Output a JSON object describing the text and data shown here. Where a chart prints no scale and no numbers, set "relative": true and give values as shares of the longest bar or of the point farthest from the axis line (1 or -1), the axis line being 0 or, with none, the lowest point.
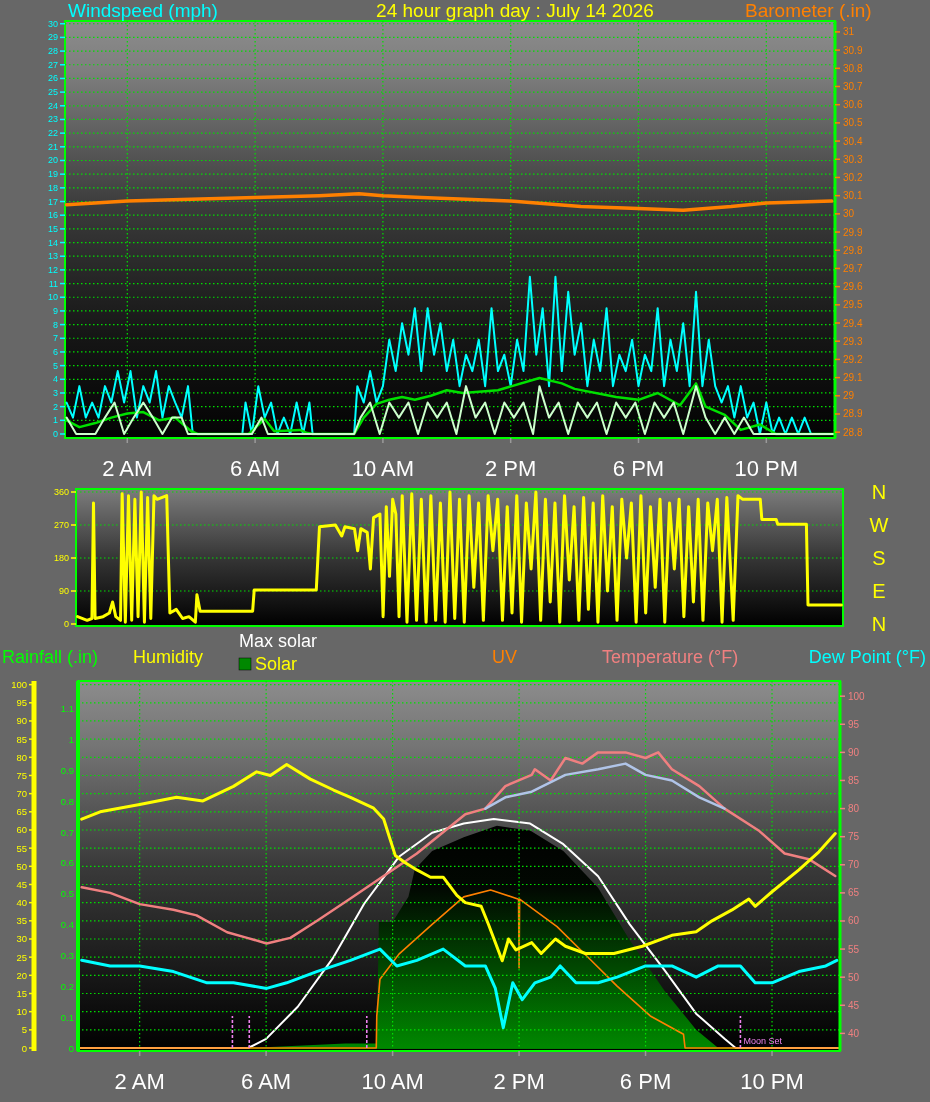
{
  "chart_data": [
    {
      "type": "line",
      "title": "24 hour graph day : July 14 2026",
      "ylabel": "Windspeed (mph)",
      "y2label": "Barometer (.in)",
      "xlim": [
        "2026-07-14T00:03",
        "2026-07-15T00:09"
      ],
      "xticks": [
        {
          "value": "2026-07-14T02:00",
          "label": "2 AM"
        },
        {
          "value": "2026-07-14T06:00",
          "label": "6 AM"
        },
        {
          "value": "2026-07-14T10:00",
          "label": "10 AM"
        },
        {
          "value": "2026-07-14T14:00",
          "label": "2 PM"
        },
        {
          "value": "2026-07-14T18:00",
          "label": "6 PM"
        },
        {
          "value": "2026-07-14T22:00",
          "label": "10 PM"
        }
      ],
      "ylim": [
        0,
        30.2
      ],
      "yticks": [
        0,
        1,
        2,
        3,
        4,
        5,
        6,
        7,
        8,
        9,
        10,
        11,
        12,
        13,
        14,
        15,
        16,
        17,
        18,
        19,
        20,
        21,
        22,
        23,
        24,
        25,
        26,
        27,
        28,
        29,
        30
      ],
      "y2lim": [
        28.79,
        31.06
      ],
      "y2ticks": [
        28.8,
        28.9,
        29,
        29.1,
        29.2,
        29.3,
        29.4,
        29.5,
        29.6,
        29.7,
        29.8,
        29.9,
        30,
        30.1,
        30.2,
        30.3,
        30.4,
        30.5,
        30.6,
        30.7,
        30.8,
        30.9,
        31
      ],
      "grid": true,
      "series": [
        {
          "color": "#00ffff",
          "x": [
            "2026-07-14T00:06",
            "2026-07-14T00:18",
            "2026-07-14T00:30",
            "2026-07-14T00:42",
            "2026-07-14T00:54",
            "2026-07-14T01:06",
            "2026-07-14T01:18",
            "2026-07-14T01:30",
            "2026-07-14T01:42",
            "2026-07-14T01:54",
            "2026-07-14T02:06",
            "2026-07-14T02:18",
            "2026-07-14T02:30",
            "2026-07-14T02:42",
            "2026-07-14T02:54",
            "2026-07-14T03:06",
            "2026-07-14T03:18",
            "2026-07-14T03:30",
            "2026-07-14T03:42",
            "2026-07-14T03:54",
            "2026-07-14T04:03",
            "2026-07-14T05:36",
            "2026-07-14T05:42",
            "2026-07-14T05:54",
            "2026-07-14T06:06",
            "2026-07-14T06:18",
            "2026-07-14T06:30",
            "2026-07-14T06:42",
            "2026-07-14T06:54",
            "2026-07-14T07:06",
            "2026-07-14T07:18",
            "2026-07-14T07:30",
            "2026-07-14T07:42",
            "2026-07-14T07:48",
            "2026-07-14T09:06",
            "2026-07-14T09:12",
            "2026-07-14T09:24",
            "2026-07-14T09:36",
            "2026-07-14T09:48",
            "2026-07-14T10:00",
            "2026-07-14T10:12",
            "2026-07-14T10:24",
            "2026-07-14T10:36",
            "2026-07-14T10:48",
            "2026-07-14T11:00",
            "2026-07-14T11:12",
            "2026-07-14T11:24",
            "2026-07-14T11:36",
            "2026-07-14T11:48",
            "2026-07-14T12:00",
            "2026-07-14T12:12",
            "2026-07-14T12:24",
            "2026-07-14T12:36",
            "2026-07-14T12:48",
            "2026-07-14T13:00",
            "2026-07-14T13:12",
            "2026-07-14T13:24",
            "2026-07-14T13:36",
            "2026-07-14T13:48",
            "2026-07-14T14:00",
            "2026-07-14T14:12",
            "2026-07-14T14:24",
            "2026-07-14T14:36",
            "2026-07-14T14:48",
            "2026-07-14T15:00",
            "2026-07-14T15:12",
            "2026-07-14T15:24",
            "2026-07-14T15:36",
            "2026-07-14T15:48",
            "2026-07-14T16:00",
            "2026-07-14T16:12",
            "2026-07-14T16:24",
            "2026-07-14T16:36",
            "2026-07-14T16:48",
            "2026-07-14T17:00",
            "2026-07-14T17:12",
            "2026-07-14T17:24",
            "2026-07-14T17:36",
            "2026-07-14T17:48",
            "2026-07-14T18:00",
            "2026-07-14T18:12",
            "2026-07-14T18:24",
            "2026-07-14T18:36",
            "2026-07-14T18:48",
            "2026-07-14T19:00",
            "2026-07-14T19:12",
            "2026-07-14T19:24",
            "2026-07-14T19:36",
            "2026-07-14T19:48",
            "2026-07-14T20:00",
            "2026-07-14T20:12",
            "2026-07-14T20:24",
            "2026-07-14T20:36",
            "2026-07-14T20:48",
            "2026-07-14T21:00",
            "2026-07-14T21:12",
            "2026-07-14T21:24",
            "2026-07-14T21:36",
            "2026-07-14T21:48",
            "2026-07-14T22:00",
            "2026-07-14T22:12",
            "2026-07-14T22:24",
            "2026-07-14T22:36",
            "2026-07-14T22:48",
            "2026-07-14T23:00",
            "2026-07-14T23:12",
            "2026-07-14T23:24",
            "2026-07-15T00:06"
          ],
          "values": [
            2.3,
            1.2,
            3.5,
            1.2,
            2.3,
            1.2,
            3.5,
            2.3,
            4.6,
            2.3,
            4.6,
            1.2,
            3.5,
            2.3,
            4.6,
            1.2,
            3.5,
            2.3,
            1.2,
            3.5,
            0,
            0,
            2.3,
            0,
            3.5,
            1.2,
            2.3,
            0,
            1.2,
            0,
            2.3,
            0,
            2.3,
            0,
            0,
            3.5,
            2.3,
            4.6,
            2.3,
            3.5,
            6.9,
            4.6,
            8.1,
            5.8,
            9.2,
            4.6,
            9.2,
            5.8,
            8.1,
            4.6,
            6.9,
            3.5,
            5.8,
            4.6,
            6.9,
            3.5,
            9.2,
            4.6,
            5.8,
            3.5,
            6.9,
            4.6,
            11.5,
            5.8,
            9.2,
            3.5,
            11.5,
            4.6,
            10.4,
            5.8,
            8.1,
            3.5,
            6.9,
            4.6,
            9.2,
            3.5,
            5.8,
            4.6,
            6.9,
            3.5,
            5.8,
            4.6,
            9.2,
            3.5,
            6.9,
            4.6,
            8.1,
            3.5,
            10.4,
            3.5,
            6.9,
            3.5,
            2.3,
            3.5,
            1.2,
            3.5,
            1.2,
            2.3,
            0,
            2.3,
            0,
            1.2,
            0,
            1.2,
            0,
            1.2,
            0,
            0
          ]
        },
        {
          "color": "#00e000",
          "x": [
            "2026-07-14T00:06",
            "2026-07-14T00:30",
            "2026-07-14T01:00",
            "2026-07-14T01:30",
            "2026-07-14T02:00",
            "2026-07-14T02:30",
            "2026-07-14T03:00",
            "2026-07-14T03:30",
            "2026-07-14T04:00",
            "2026-07-14T04:12",
            "2026-07-14T05:48",
            "2026-07-14T06:18",
            "2026-07-14T06:36",
            "2026-07-14T07:24",
            "2026-07-14T07:36",
            "2026-07-14T07:48",
            "2026-07-14T09:06",
            "2026-07-14T09:24",
            "2026-07-14T09:48",
            "2026-07-14T10:12",
            "2026-07-14T10:36",
            "2026-07-14T11:00",
            "2026-07-14T11:30",
            "2026-07-14T12:00",
            "2026-07-14T12:30",
            "2026-07-14T13:36",
            "2026-07-14T14:54",
            "2026-07-14T15:36",
            "2026-07-14T16:00",
            "2026-07-14T17:18",
            "2026-07-14T18:00",
            "2026-07-14T18:36",
            "2026-07-14T19:18",
            "2026-07-14T19:48",
            "2026-07-14T20:06",
            "2026-07-14T20:42",
            "2026-07-14T21:12",
            "2026-07-14T21:48",
            "2026-07-14T22:18",
            "2026-07-15T00:06"
          ],
          "values": [
            1,
            0.5,
            0.8,
            1.2,
            1.5,
            1.6,
            1,
            1.2,
            0.2,
            0,
            0,
            1.1,
            0.2,
            0.3,
            0.1,
            0,
            0,
            1.2,
            2.2,
            2.5,
            2.7,
            2.5,
            2.8,
            3.2,
            3,
            3.2,
            4.1,
            3.7,
            3.3,
            2.7,
            2.5,
            3,
            2.1,
            3.7,
            2,
            1.4,
            0.3,
            0.7,
            0,
            0
          ]
        },
        {
          "color": "#ccffcc",
          "x": [
            "2026-07-14T00:06",
            "2026-07-14T00:24",
            "2026-07-14T01:00",
            "2026-07-14T01:18",
            "2026-07-14T01:36",
            "2026-07-14T01:54",
            "2026-07-14T02:12",
            "2026-07-14T02:30",
            "2026-07-14T02:48",
            "2026-07-14T03:06",
            "2026-07-14T03:24",
            "2026-07-14T03:42",
            "2026-07-14T03:54",
            "2026-07-14T05:54",
            "2026-07-14T06:12",
            "2026-07-14T06:24",
            "2026-07-14T09:06",
            "2026-07-14T09:18",
            "2026-07-14T09:36",
            "2026-07-14T09:54",
            "2026-07-14T10:12",
            "2026-07-14T10:30",
            "2026-07-14T10:48",
            "2026-07-14T11:06",
            "2026-07-14T11:24",
            "2026-07-14T11:42",
            "2026-07-14T12:00",
            "2026-07-14T12:18",
            "2026-07-14T12:36",
            "2026-07-14T12:54",
            "2026-07-14T13:12",
            "2026-07-14T13:30",
            "2026-07-14T13:48",
            "2026-07-14T14:06",
            "2026-07-14T14:24",
            "2026-07-14T14:42",
            "2026-07-14T14:54",
            "2026-07-14T15:12",
            "2026-07-14T15:30",
            "2026-07-14T15:48",
            "2026-07-14T16:06",
            "2026-07-14T16:24",
            "2026-07-14T16:42",
            "2026-07-14T17:00",
            "2026-07-14T17:18",
            "2026-07-14T17:36",
            "2026-07-14T17:54",
            "2026-07-14T18:12",
            "2026-07-14T18:30",
            "2026-07-14T18:48",
            "2026-07-14T19:06",
            "2026-07-14T19:24",
            "2026-07-14T19:48",
            "2026-07-14T20:06",
            "2026-07-14T20:24",
            "2026-07-14T20:42",
            "2026-07-14T21:00",
            "2026-07-14T21:18",
            "2026-07-14T21:36",
            "2026-07-14T22:00",
            "2026-07-15T00:06"
          ],
          "values": [
            1.2,
            0,
            0,
            1.2,
            2.3,
            0,
            1.2,
            2.3,
            1.2,
            0,
            1.2,
            1.2,
            0,
            0,
            1.2,
            0,
            0,
            1.2,
            2.3,
            0,
            2.3,
            1.2,
            2.3,
            0,
            2.3,
            1.2,
            2.3,
            0,
            3.5,
            1.2,
            2.3,
            0,
            2.3,
            1.2,
            2.3,
            0,
            3.5,
            1.2,
            2.3,
            0,
            2.3,
            1.2,
            2.3,
            0,
            2.3,
            1.2,
            2.3,
            0,
            2.3,
            1.2,
            2.3,
            0,
            3.5,
            1.2,
            0,
            1.2,
            0,
            1.2,
            0,
            0,
            0
          ]
        },
        {
          "color": "#ff8000",
          "axis": "y2",
          "x": [
            "2026-07-14T00:06",
            "2026-07-14T02:00",
            "2026-07-14T04:00",
            "2026-07-14T06:00",
            "2026-07-14T08:00",
            "2026-07-14T09:15",
            "2026-07-14T10:00",
            "2026-07-14T11:12",
            "2026-07-14T12:36",
            "2026-07-14T14:00",
            "2026-07-14T16:12",
            "2026-07-14T18:00",
            "2026-07-14T19:24",
            "2026-07-14T20:54",
            "2026-07-14T22:00",
            "2026-07-15T00:03"
          ],
          "values": [
            30.05,
            30.07,
            30.08,
            30.09,
            30.1,
            30.11,
            30.1,
            30.09,
            30.08,
            30.07,
            30.04,
            30.03,
            30.02,
            30.04,
            30.06,
            30.07
          ]
        }
      ]
    },
    {
      "type": "line",
      "xlim": [
        "2026-07-14T00:03",
        "2026-07-15T00:09"
      ],
      "ylim": [
        0,
        360
      ],
      "yticks": [
        0,
        90,
        180,
        270,
        360
      ],
      "grid": "y",
      "tick_labels": "y",
      "annotations": [
        "N",
        "W",
        "S",
        "E",
        "N"
      ],
      "series": [
        {
          "color": "#ffff00",
          "x": [
            "2026-07-14T00:06",
            "2026-07-14T00:24",
            "2026-07-14T00:33",
            "2026-07-14T00:36",
            "2026-07-14T00:39",
            "2026-07-14T00:54",
            "2026-07-14T01:06",
            "2026-07-14T01:12",
            "2026-07-14T01:18",
            "2026-07-14T01:27",
            "2026-07-14T01:30",
            "2026-07-14T01:36",
            "2026-07-14T01:42",
            "2026-07-14T01:48",
            "2026-07-14T01:54",
            "2026-07-14T02:00",
            "2026-07-14T02:06",
            "2026-07-14T02:12",
            "2026-07-14T02:18",
            "2026-07-14T02:24",
            "2026-07-14T02:30",
            "2026-07-14T02:36",
            "2026-07-14T02:54",
            "2026-07-14T03:00",
            "2026-07-14T03:12",
            "2026-07-14T03:24",
            "2026-07-14T03:36",
            "2026-07-14T03:48",
            "2026-07-14T03:51",
            "2026-07-14T03:57",
            "2026-07-14T05:36",
            "2026-07-14T05:39",
            "2026-07-14T07:36",
            "2026-07-14T07:42",
            "2026-07-14T08:12",
            "2026-07-14T08:24",
            "2026-07-14T08:30",
            "2026-07-14T08:48",
            "2026-07-14T08:54",
            "2026-07-14T09:00",
            "2026-07-14T09:12",
            "2026-07-14T09:18",
            "2026-07-14T09:24",
            "2026-07-14T09:36",
            "2026-07-14T09:42",
            "2026-07-14T09:48",
            "2026-07-14T09:54",
            "2026-07-14T10:00",
            "2026-07-14T10:06",
            "2026-07-14T10:12",
            "2026-07-14T10:18",
            "2026-07-14T10:27",
            "2026-07-14T10:36",
            "2026-07-14T10:45",
            "2026-07-14T10:54",
            "2026-07-14T11:03",
            "2026-07-14T11:12",
            "2026-07-14T11:21",
            "2026-07-14T11:30",
            "2026-07-14T11:39",
            "2026-07-14T11:48",
            "2026-07-14T11:57",
            "2026-07-14T12:06",
            "2026-07-14T12:15",
            "2026-07-14T12:24",
            "2026-07-14T12:33",
            "2026-07-14T12:42",
            "2026-07-14T12:51",
            "2026-07-14T13:00",
            "2026-07-14T13:09",
            "2026-07-14T13:18",
            "2026-07-14T13:27",
            "2026-07-14T13:36",
            "2026-07-14T13:45",
            "2026-07-14T13:54",
            "2026-07-14T14:03",
            "2026-07-14T14:12",
            "2026-07-14T14:21",
            "2026-07-14T14:30",
            "2026-07-14T14:39",
            "2026-07-14T14:48",
            "2026-07-14T14:57",
            "2026-07-14T15:06",
            "2026-07-14T15:15",
            "2026-07-14T15:24",
            "2026-07-14T15:33",
            "2026-07-14T15:42",
            "2026-07-14T15:51",
            "2026-07-14T16:00",
            "2026-07-14T16:09",
            "2026-07-14T16:18",
            "2026-07-14T16:27",
            "2026-07-14T16:36",
            "2026-07-14T16:45",
            "2026-07-14T16:54",
            "2026-07-14T17:03",
            "2026-07-14T17:12",
            "2026-07-14T17:21",
            "2026-07-14T17:30",
            "2026-07-14T17:39",
            "2026-07-14T17:48",
            "2026-07-14T17:57",
            "2026-07-14T18:06",
            "2026-07-14T18:15",
            "2026-07-14T18:24",
            "2026-07-14T18:33",
            "2026-07-14T18:42",
            "2026-07-14T18:51",
            "2026-07-14T19:00",
            "2026-07-14T19:09",
            "2026-07-14T19:18",
            "2026-07-14T19:27",
            "2026-07-14T19:36",
            "2026-07-14T19:45",
            "2026-07-14T19:54",
            "2026-07-14T20:03",
            "2026-07-14T20:12",
            "2026-07-14T20:21",
            "2026-07-14T20:30",
            "2026-07-14T20:42",
            "2026-07-14T20:51",
            "2026-07-14T21:00",
            "2026-07-14T21:12",
            "2026-07-14T21:33",
            "2026-07-14T21:36",
            "2026-07-14T22:03",
            "2026-07-14T22:06",
            "2026-07-14T23:00",
            "2026-07-14T23:03",
            "2026-07-15T00:06"
          ],
          "values": [
            20,
            10,
            15,
            330,
            15,
            20,
            30,
            60,
            20,
            10,
            355,
            5,
            350,
            10,
            340,
            20,
            360,
            5,
            345,
            15,
            350,
            340,
            350,
            30,
            40,
            15,
            20,
            5,
            80,
            35,
            35,
            93,
            93,
            265,
            270,
            240,
            265,
            260,
            200,
            260,
            250,
            150,
            290,
            300,
            20,
            320,
            130,
            340,
            300,
            20,
            350,
            5,
            355,
            10,
            340,
            5,
            350,
            10,
            330,
            5,
            360,
            15,
            340,
            5,
            350,
            100,
            330,
            10,
            350,
            200,
            340,
            10,
            320,
            30,
            350,
            5,
            330,
            150,
            360,
            10,
            340,
            60,
            330,
            5,
            350,
            120,
            320,
            10,
            345,
            40,
            330,
            5,
            350,
            90,
            320,
            10,
            340,
            180,
            330,
            5,
            350,
            30,
            320,
            100,
            340,
            5,
            330,
            150,
            340,
            20,
            320,
            60,
            340,
            10,
            330,
            200,
            340,
            5,
            345,
            10,
            350,
            340,
            340,
            340,
            285,
            285,
            272,
            272,
            52,
            52
          ]
        }
      ]
    },
    {
      "type": "line",
      "ylabel": "Humidity",
      "y2label": "Temperature (°F)",
      "y3label": "Rainfall (.in)",
      "xlim": [
        "2026-07-14T00:03",
        "2026-07-15T00:09"
      ],
      "xticks": [
        {
          "value": "2026-07-14T02:00",
          "label": "2 AM"
        },
        {
          "value": "2026-07-14T06:00",
          "label": "6 AM"
        },
        {
          "value": "2026-07-14T10:00",
          "label": "10 AM"
        },
        {
          "value": "2026-07-14T14:00",
          "label": "2 PM"
        },
        {
          "value": "2026-07-14T18:00",
          "label": "6 PM"
        },
        {
          "value": "2026-07-14T22:00",
          "label": "10 PM"
        }
      ],
      "ylim": [
        0,
        101
      ],
      "yticks": [
        0,
        5,
        10,
        15,
        20,
        25,
        30,
        35,
        40,
        45,
        50,
        55,
        60,
        65,
        70,
        75,
        80,
        85,
        90,
        95,
        100
      ],
      "y2lim": [
        37.4,
        102.7
      ],
      "y2ticks": [
        40,
        45,
        50,
        55,
        60,
        65,
        70,
        75,
        80,
        85,
        90,
        95,
        100
      ],
      "y3lim": [
        0,
        1.19
      ],
      "y3ticks": [
        0,
        0.1,
        0.2,
        0.3,
        0.4,
        0.5,
        0.6,
        0.7,
        0.8,
        0.9,
        1,
        1.1
      ],
      "grid": true,
      "legend": "top right",
      "ref_lines": [
        {
          "axis": "x",
          "value": "2026-07-14T04:56",
          "color": "#ee82ee",
          "line_style": "dashed"
        },
        {
          "axis": "x",
          "value": "2026-07-14T05:28",
          "color": "#ee82ee",
          "line_style": "dashed"
        },
        {
          "axis": "x",
          "value": "2026-07-14T09:11",
          "color": "#ee82ee",
          "line_style": "dashed"
        },
        {
          "axis": "x",
          "value": "2026-07-14T21:00",
          "label": "Moon Set",
          "color": "#ee82ee",
          "line_style": "dashed"
        }
      ],
      "series": [
        {
          "color": "#f08080",
          "axis": "y2",
          "x": [
            "2026-07-14T00:10",
            "2026-07-14T01:04",
            "2026-07-14T02:00",
            "2026-07-14T03:04",
            "2026-07-14T03:48",
            "2026-07-14T04:46",
            "2026-07-14T05:24",
            "2026-07-14T06:01",
            "2026-07-14T06:46",
            "2026-07-14T07:36",
            "2026-07-14T08:40",
            "2026-07-14T09:43",
            "2026-07-14T10:46",
            "2026-07-14T12:18",
            "2026-07-14T12:56",
            "2026-07-14T13:34",
            "2026-07-14T14:24",
            "2026-07-14T14:30",
            "2026-07-14T15:00",
            "2026-07-14T15:28",
            "2026-07-14T16:00",
            "2026-07-14T16:30",
            "2026-07-14T17:22",
            "2026-07-14T18:00",
            "2026-07-14T18:24",
            "2026-07-14T18:50",
            "2026-07-14T19:42",
            "2026-07-14T20:30",
            "2026-07-14T21:36",
            "2026-07-14T22:24",
            "2026-07-14T23:10",
            "2026-07-15T00:00"
          ],
          "values": [
            66,
            65,
            63,
            62,
            61,
            58,
            57,
            56,
            57,
            60,
            64,
            68,
            72,
            79,
            80,
            84,
            86,
            87,
            85,
            89,
            88,
            90,
            90,
            89,
            90,
            87,
            84,
            80,
            76,
            72,
            71,
            68
          ]
        },
        {
          "color": "#b0c4e8",
          "axis": "y2",
          "x": [
            "2026-07-14T12:56",
            "2026-07-14T13:34",
            "2026-07-14T14:24",
            "2026-07-14T15:28",
            "2026-07-14T16:30",
            "2026-07-14T17:22",
            "2026-07-14T18:00",
            "2026-07-14T18:50",
            "2026-07-14T19:42",
            "2026-07-14T20:30"
          ],
          "values": [
            80,
            82,
            83,
            86,
            87,
            88,
            86,
            85,
            82,
            80
          ]
        },
        {
          "name": "Dew Point (°F)",
          "color": "#00ffff",
          "axis": "y2",
          "x": [
            "2026-07-14T00:10",
            "2026-07-14T01:04",
            "2026-07-14T02:00",
            "2026-07-14T03:04",
            "2026-07-14T04:08",
            "2026-07-14T04:58",
            "2026-07-14T06:01",
            "2026-07-14T06:39",
            "2026-07-14T07:36",
            "2026-07-14T08:40",
            "2026-07-14T09:36",
            "2026-07-14T10:08",
            "2026-07-14T10:46",
            "2026-07-14T11:36",
            "2026-07-14T12:18",
            "2026-07-14T12:56",
            "2026-07-14T13:15",
            "2026-07-14T13:30",
            "2026-07-14T13:48",
            "2026-07-14T14:06",
            "2026-07-14T14:30",
            "2026-07-14T15:00",
            "2026-07-14T15:18",
            "2026-07-14T15:48",
            "2026-07-14T16:30",
            "2026-07-14T17:06",
            "2026-07-14T18:00",
            "2026-07-14T18:50",
            "2026-07-14T19:36",
            "2026-07-14T20:18",
            "2026-07-14T21:00",
            "2026-07-14T21:28",
            "2026-07-14T22:00",
            "2026-07-14T22:51",
            "2026-07-14T23:42",
            "2026-07-15T00:03"
          ],
          "values": [
            53,
            52,
            52,
            51,
            49,
            49,
            48,
            49,
            51,
            53,
            55,
            52,
            53,
            55,
            52,
            52,
            48,
            41,
            49,
            46,
            49,
            50,
            52,
            49,
            49,
            50,
            52,
            52,
            50,
            52,
            52,
            49,
            49,
            51,
            52,
            53
          ]
        },
        {
          "color": "#ffff00",
          "x": [
            "2026-07-14T00:10",
            "2026-07-14T00:45",
            "2026-07-14T02:00",
            "2026-07-14T03:10",
            "2026-07-14T04:00",
            "2026-07-14T04:58",
            "2026-07-14T05:42",
            "2026-07-14T06:08",
            "2026-07-14T06:39",
            "2026-07-14T07:24",
            "2026-07-14T08:08",
            "2026-07-14T08:40",
            "2026-07-14T09:24",
            "2026-07-14T09:43",
            "2026-07-14T10:05",
            "2026-07-14T10:24",
            "2026-07-14T10:46",
            "2026-07-14T11:12",
            "2026-07-14T11:36",
            "2026-07-14T12:02",
            "2026-07-14T12:18",
            "2026-07-14T12:48",
            "2026-07-14T13:02",
            "2026-07-14T13:28",
            "2026-07-14T13:40",
            "2026-07-14T13:54",
            "2026-07-14T14:24",
            "2026-07-14T14:42",
            "2026-07-14T15:09",
            "2026-07-14T15:28",
            "2026-07-14T16:06",
            "2026-07-14T17:00",
            "2026-07-14T17:54",
            "2026-07-14T18:50",
            "2026-07-14T19:36",
            "2026-07-14T20:06",
            "2026-07-14T20:44",
            "2026-07-14T21:16",
            "2026-07-14T21:28",
            "2026-07-14T22:00",
            "2026-07-14T22:51",
            "2026-07-14T23:29",
            "2026-07-15T00:00"
          ],
          "values": [
            63,
            65,
            67,
            69,
            68,
            72,
            76,
            75,
            78,
            74,
            71,
            69,
            66,
            63,
            53,
            51,
            49,
            47,
            47,
            42,
            40,
            39,
            34,
            24,
            30,
            27,
            29,
            26,
            30,
            28,
            26,
            26,
            28,
            31,
            32,
            35,
            38,
            41,
            39,
            43,
            49,
            54,
            59
          ]
        }
      ]
    },
    {
      "type": "line",
      "relative": true,
      "xlim": [
        "2026-07-14T00:03",
        "2026-07-15T00:09"
      ],
      "legend": "top",
      "series": [
        {
          "name": "Solar",
          "type": "area",
          "color": "#008800",
          "x": [
            "2026-07-14T00:03",
            "2026-07-14T05:30",
            "2026-07-14T07:00",
            "2026-07-14T08:30",
            "2026-07-14T09:30",
            "2026-07-14T09:34",
            "2026-07-14T10:00",
            "2026-07-14T10:30",
            "2026-07-14T10:42",
            "2026-07-14T11:15",
            "2026-07-14T12:15",
            "2026-07-14T13:18",
            "2026-07-14T14:21",
            "2026-07-14T15:24",
            "2026-07-14T16:30",
            "2026-07-14T17:30",
            "2026-07-14T18:36",
            "2026-07-14T19:36",
            "2026-07-14T20:18",
            "2026-07-15T00:09"
          ],
          "values": [
            0,
            0,
            0.01,
            0.02,
            0.02,
            0.55,
            0.55,
            0.66,
            0.78,
            0.86,
            0.92,
            0.97,
            0.95,
            0.86,
            0.7,
            0.47,
            0.25,
            0.08,
            0,
            0
          ]
        },
        {
          "name": "Max solar",
          "color": "#ffffff",
          "x": [
            "2026-07-14T00:03",
            "2026-07-14T05:26",
            "2026-07-14T06:00",
            "2026-07-14T07:00",
            "2026-07-14T08:06",
            "2026-07-14T09:06",
            "2026-07-14T10:12",
            "2026-07-14T11:15",
            "2026-07-14T12:15",
            "2026-07-14T13:12",
            "2026-07-14T14:21",
            "2026-07-14T15:24",
            "2026-07-14T16:30",
            "2026-07-14T17:30",
            "2026-07-14T18:36",
            "2026-07-14T19:36",
            "2026-07-14T20:30",
            "2026-07-14T20:51",
            "2026-07-15T00:09"
          ],
          "values": [
            0,
            0,
            0.04,
            0.18,
            0.39,
            0.63,
            0.835,
            0.94,
            0.98,
            1,
            0.98,
            0.89,
            0.75,
            0.54,
            0.34,
            0.15,
            0.04,
            0,
            0
          ]
        },
        {
          "name": "UV",
          "color": "#ff8000",
          "x": [
            "2026-07-14T00:03",
            "2026-07-14T09:29",
            "2026-07-14T09:30",
            "2026-07-14T09:36",
            "2026-07-14T10:12",
            "2026-07-14T11:15",
            "2026-07-14T12:15",
            "2026-07-14T13:06",
            "2026-07-14T13:59",
            "2026-07-14T14:00",
            "2026-07-14T14:01",
            "2026-07-14T15:12",
            "2026-07-14T16:18",
            "2026-07-14T17:06",
            "2026-07-14T18:09",
            "2026-07-14T19:12",
            "2026-07-14T19:15",
            "2026-07-15T00:09"
          ],
          "values": [
            0,
            0,
            0.14,
            0.3,
            0.41,
            0.54,
            0.66,
            0.69,
            0.65,
            0.35,
            0.65,
            0.53,
            0.38,
            0.27,
            0.14,
            0.06,
            0,
            0
          ]
        }
      ]
    }
  ]
}
